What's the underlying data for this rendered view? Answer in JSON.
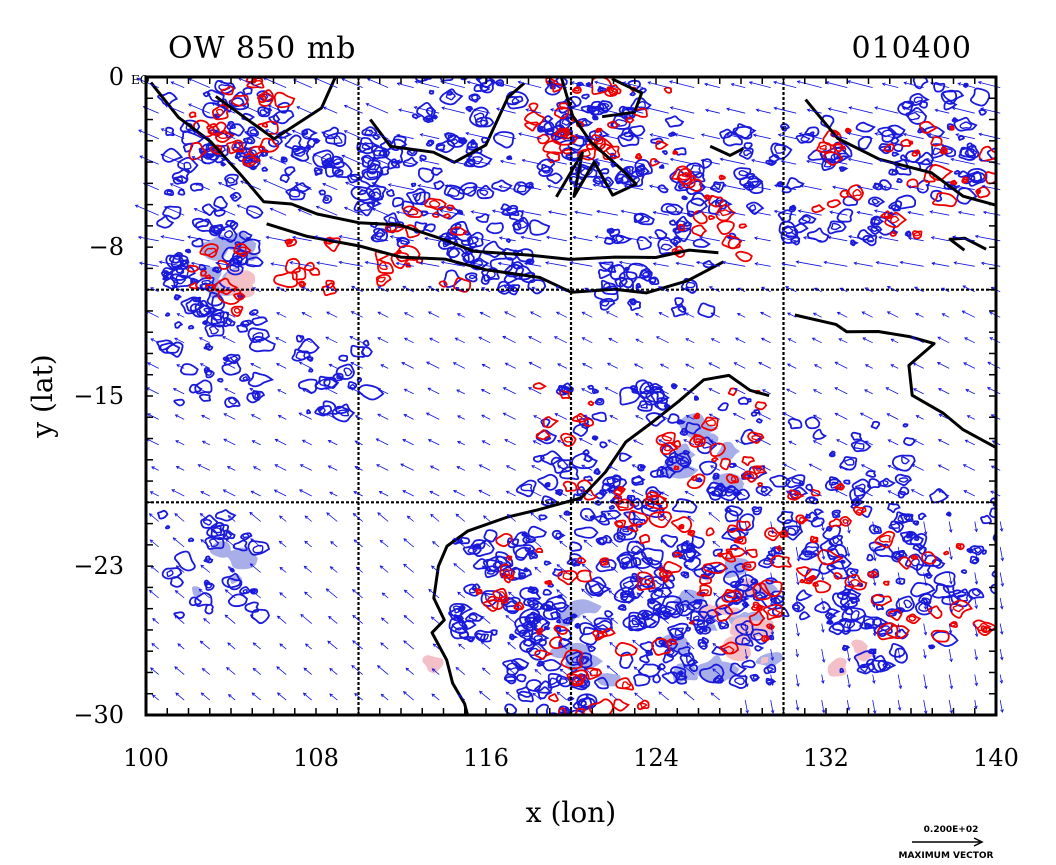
{
  "chart_data": {
    "type": "heatmap",
    "title_left": "OW 850 mb",
    "title_right": "010400",
    "xlabel": "x (lon)",
    "ylabel": "y (lat)",
    "xlim": [
      100,
      140
    ],
    "ylim": [
      -30,
      0
    ],
    "x_ticks": [
      100,
      108,
      116,
      124,
      132,
      140
    ],
    "x_tick_labels": [
      "100",
      "108",
      "116",
      "124",
      "132",
      "140"
    ],
    "y_ticks": [
      0,
      -8,
      -15,
      -23,
      -30
    ],
    "y_tick_labels": [
      "0",
      "−8",
      "−15",
      "−23",
      "−30"
    ],
    "eq_label": "EQ",
    "grid_lon": [
      110,
      120,
      130
    ],
    "grid_lat": [
      -10,
      -20
    ],
    "vector_legend_value": "0.200E+02",
    "vector_legend_label": "MAXIMUM VECTOR",
    "series": [
      {
        "name": "OW positive (red contours)",
        "color": "#ee0000",
        "fill": "#f4c0c8"
      },
      {
        "name": "OW negative (blue contours)",
        "color": "#1a1adb",
        "fill": "#a8aee8"
      },
      {
        "name": "wind vectors",
        "color": "#1010e0"
      },
      {
        "name": "coastline",
        "color": "#000000"
      }
    ]
  },
  "colors": {
    "red": "#ee0000",
    "pink_fill": "#f4c0c8",
    "blue": "#1a1adb",
    "blue_fill": "#a8aee8",
    "vector": "#1010e0"
  }
}
